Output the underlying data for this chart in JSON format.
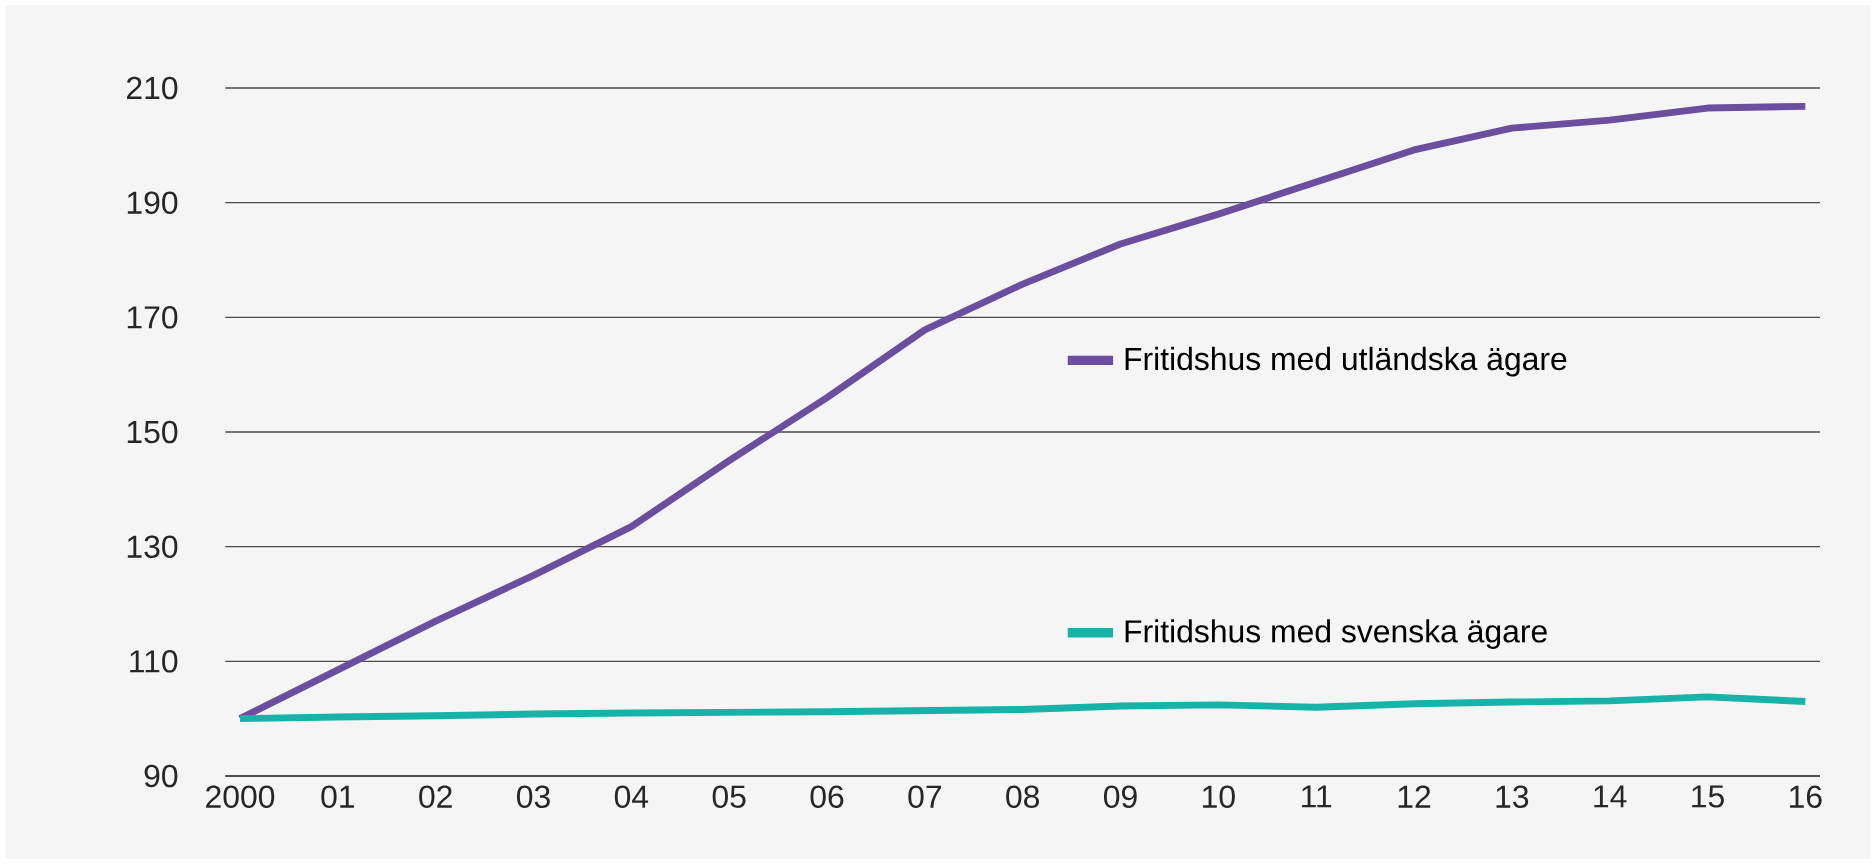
{
  "chart_data": {
    "type": "line",
    "categories": [
      "2000",
      "01",
      "02",
      "03",
      "04",
      "05",
      "06",
      "07",
      "08",
      "09",
      "10",
      "11",
      "12",
      "13",
      "14",
      "15",
      "16"
    ],
    "series": [
      {
        "name": "Fritidshus med utländska ägare",
        "color": "#6b4f9e",
        "values": [
          100,
          108.5,
          117,
          125,
          133.5,
          145,
          156,
          167.8,
          175.8,
          182.8,
          188,
          193.6,
          199.2,
          203,
          204.4,
          206.5,
          206.8
        ]
      },
      {
        "name": "Fritidshus med svenska ägare",
        "color": "#17b3a8",
        "values": [
          100,
          100.3,
          100.5,
          100.8,
          101,
          101.1,
          101.2,
          101.4,
          101.6,
          102.2,
          102.4,
          102,
          102.6,
          102.9,
          103.1,
          103.8,
          103
        ]
      }
    ],
    "ylim": [
      90,
      210
    ],
    "yticks": [
      90,
      110,
      130,
      150,
      170,
      190,
      210
    ],
    "grid": "y",
    "legend": "right",
    "marker": "none",
    "line_style": "solid"
  }
}
